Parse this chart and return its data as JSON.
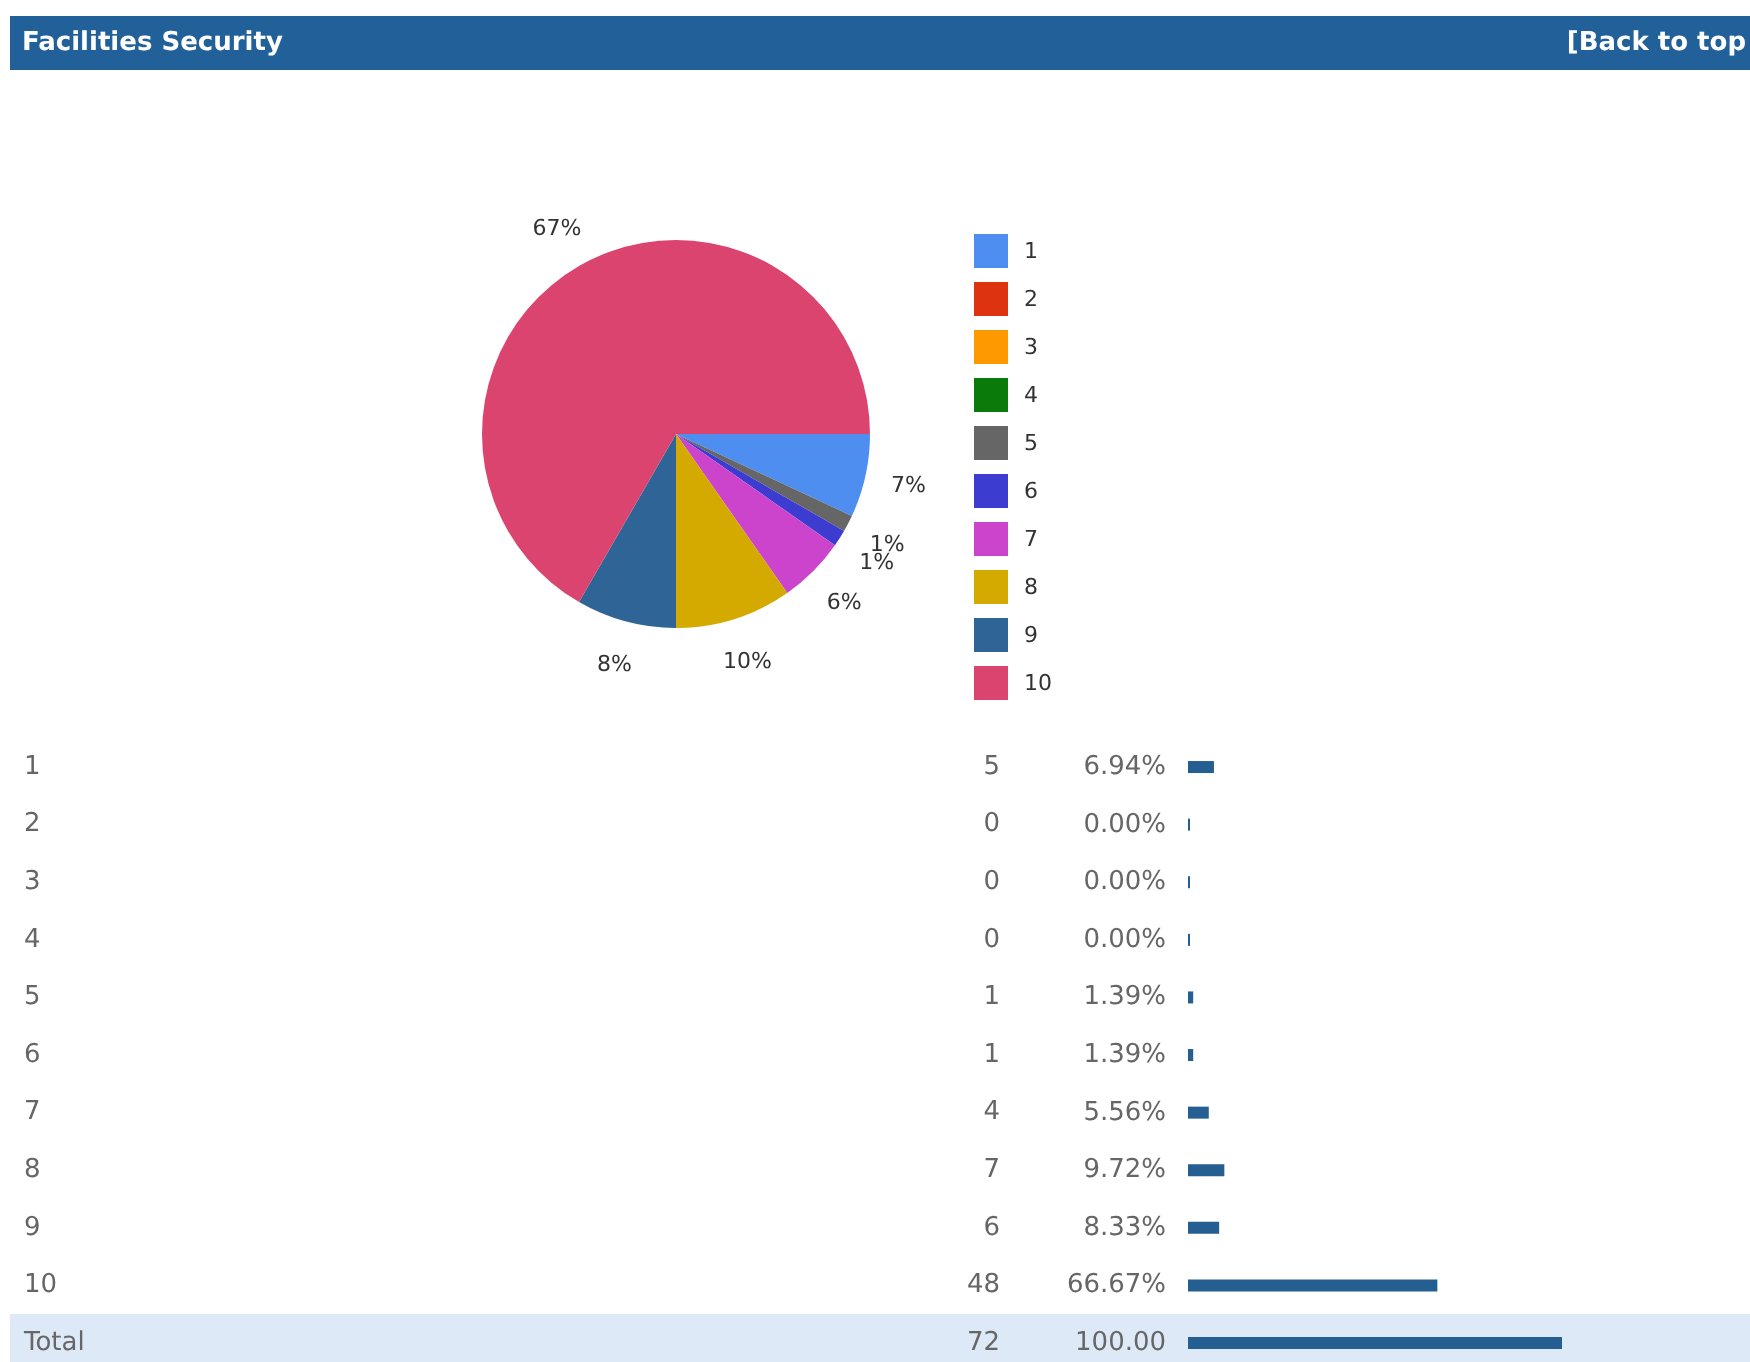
{
  "chart_data": [
    {
      "type": "pie",
      "title": "Facilities Security",
      "annotations": [
        "[Back to top"
      ],
      "legend": "right",
      "categories": [
        "1",
        "2",
        "3",
        "4",
        "5",
        "6",
        "7",
        "8",
        "9",
        "10"
      ],
      "values": [
        6.94,
        0,
        0,
        0,
        1.39,
        1.39,
        5.56,
        9.72,
        8.33,
        66.67
      ],
      "value_labels": [
        "7%",
        null,
        null,
        null,
        "1%",
        "1%",
        "6%",
        "10%",
        "8%",
        "67%"
      ],
      "colors": [
        "#4d8ef0",
        "#dd3311",
        "#ff9900",
        "#0a7a0a",
        "#666666",
        "#3c3cd0",
        "#cc44cc",
        "#d4a900",
        "#2e6496",
        "#dc4470"
      ]
    },
    {
      "type": "bar",
      "orientation": "horizontal",
      "color": "#255e91",
      "categories": [
        "1",
        "2",
        "3",
        "4",
        "5",
        "6",
        "7",
        "8",
        "9",
        "10",
        "Total"
      ],
      "values": [
        6.94,
        0,
        0,
        0,
        1.39,
        1.39,
        5.56,
        9.72,
        8.33,
        66.67,
        100
      ],
      "value_labels": [
        "6.94%",
        "0.00%",
        "0.00%",
        "0.00%",
        "1.39%",
        "1.39%",
        "5.56%",
        "9.72%",
        "8.33%",
        "66.67%",
        "100.00"
      ],
      "annotations": [
        "5",
        "0",
        "0",
        "0",
        "1",
        "1",
        "4",
        "7",
        "6",
        "48",
        "72"
      ]
    }
  ]
}
